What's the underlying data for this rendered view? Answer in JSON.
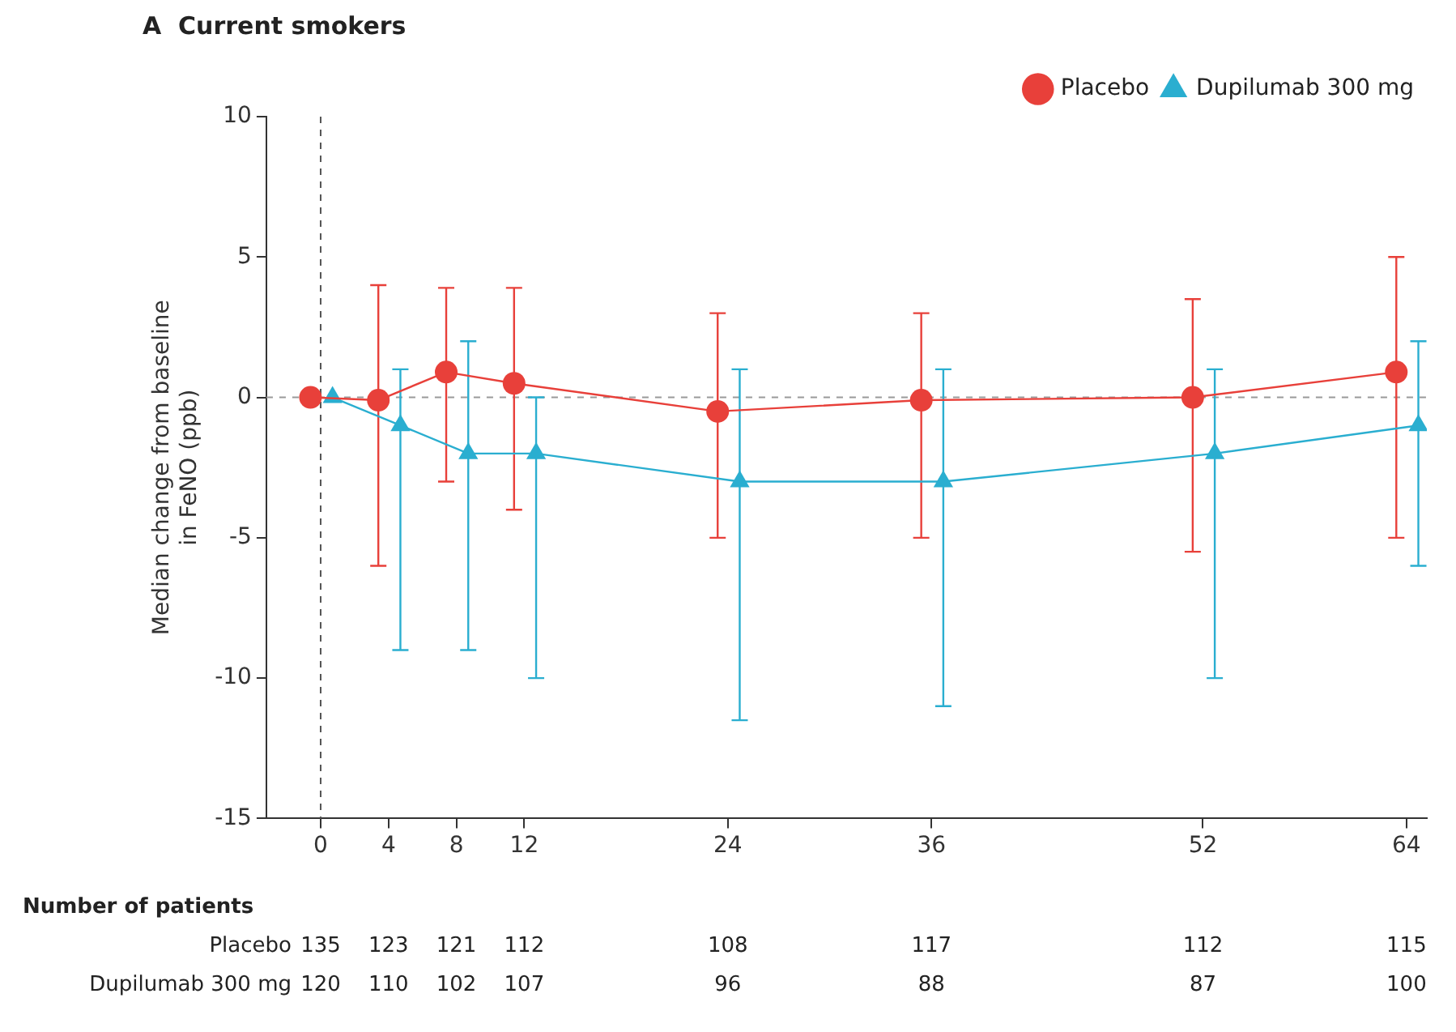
{
  "chart_data": {
    "type": "line",
    "title": "A  Current smokers",
    "ylabel": "Median change from baseline in FeNO (ppb)",
    "series": [
      {
        "name": "Placebo",
        "color": "#e8403a",
        "marker": "circle",
        "x": [
          -0.6,
          3.4,
          7.4,
          11.4,
          23.4,
          35.4,
          51.4,
          63.4
        ],
        "values": [
          0,
          -0.1,
          0.9,
          0.5,
          -0.5,
          -0.1,
          0,
          0.9
        ],
        "errors": [
          null,
          [
            -6,
            4
          ],
          [
            -3,
            3.9
          ],
          [
            -4,
            3.9
          ],
          [
            -5,
            3
          ],
          [
            -5,
            3
          ],
          [
            -5.5,
            3.5
          ],
          [
            -5,
            5
          ]
        ]
      },
      {
        "name": "Dupilumab 300 mg",
        "color": "#2aaed0",
        "marker": "triangle",
        "x": [
          0.7,
          4.7,
          8.7,
          12.7,
          24.7,
          36.7,
          52.7,
          64.7
        ],
        "values": [
          0,
          -1,
          -2,
          -2,
          -3,
          -3,
          -2,
          -1
        ],
        "errors": [
          null,
          [
            -9,
            1
          ],
          [
            -9,
            2
          ],
          [
            -10,
            0
          ],
          [
            -11.5,
            1
          ],
          [
            -11,
            1
          ],
          [
            -10,
            1
          ],
          [
            -6,
            2
          ]
        ]
      }
    ],
    "xlim": [
      -3.2,
      65.2
    ],
    "xticks": [
      0,
      4,
      8,
      12,
      24,
      36,
      52,
      64
    ],
    "ylim": [
      -15,
      10
    ],
    "yticks": [
      -15,
      -10,
      -5,
      0,
      5,
      10
    ],
    "ref_lines": [
      {
        "axis": "y",
        "value": 0,
        "color": "#999999",
        "line_style": "dashed"
      },
      {
        "axis": "x",
        "value": 0,
        "color": "#555555",
        "line_style": "dashed"
      }
    ],
    "legend": "top right",
    "grid": false,
    "annotations": [
      "Number of patients",
      "Placebo",
      "135",
      "123",
      "121",
      "112",
      "108",
      "117",
      "112",
      "115",
      "Dupilumab 300 mg",
      "120",
      "110",
      "102",
      "107",
      "96",
      "88",
      "87",
      "100"
    ]
  }
}
